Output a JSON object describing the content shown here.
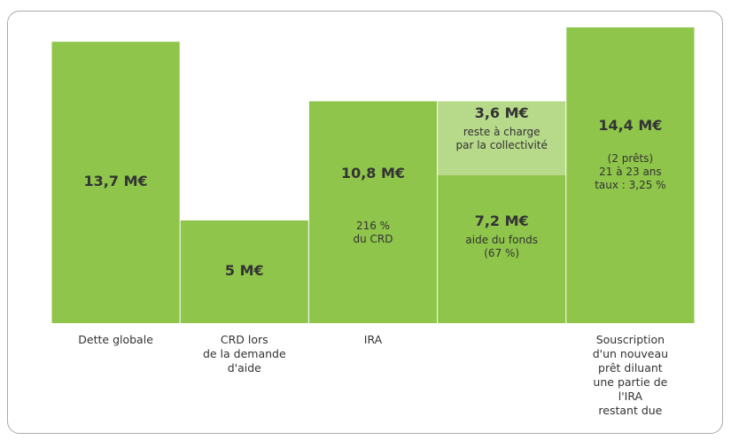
{
  "chart_data": {
    "type": "stacked-bar",
    "categories": [
      "Dette globale",
      "CRD lors\nde la demande\nd'aide",
      "IRA",
      null,
      "Souscription\nd'un nouveau\nprêt diluant\nune partie de l'IRA\nrestant due"
    ],
    "series": [
      {
        "color": "#8fc54a",
        "values": [
          13.7,
          5,
          10.8,
          7.2,
          14.4
        ],
        "value_labels": [
          "13,7 M€",
          "5 M€",
          "10,8 M€",
          "7,2 M€",
          "14,4 M€"
        ],
        "notes": [
          null,
          null,
          "216 %\ndu CRD",
          "aide du fonds\n(67 %)",
          "(2 prêts)\n21 à 23 ans\ntaux : 3,25 %"
        ]
      },
      {
        "color": "#b7d98a",
        "values": [
          null,
          null,
          null,
          3.6,
          null
        ],
        "value_labels": [
          null,
          null,
          null,
          "3,6 M€",
          null
        ],
        "notes": [
          null,
          null,
          null,
          "reste à charge\npar la collectivité",
          null
        ]
      }
    ]
  }
}
